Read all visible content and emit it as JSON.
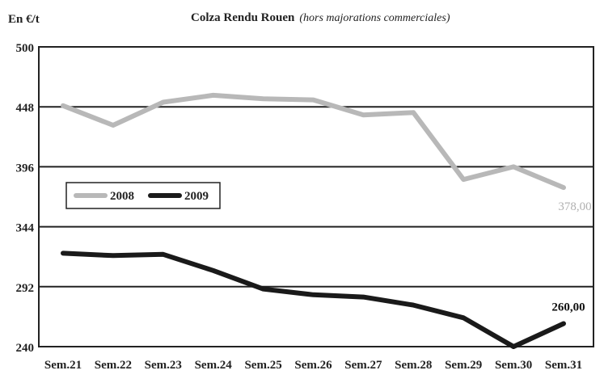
{
  "chart_data": {
    "type": "line",
    "unit_label": "En €/t",
    "title": "Colza Rendu Rouen",
    "subtitle": "(hors majorations commerciales)",
    "categories": [
      "Sem.21",
      "Sem.22",
      "Sem.23",
      "Sem.24",
      "Sem.25",
      "Sem.26",
      "Sem.27",
      "Sem.28",
      "Sem.29",
      "Sem.30",
      "Sem.31"
    ],
    "ylim": [
      240,
      500
    ],
    "yticks": [
      240,
      292,
      344,
      396,
      448,
      500
    ],
    "grid": "horizontal",
    "legend_position": "left, below 396 gridline",
    "series": [
      {
        "name": "2008",
        "color": "#b8b8b8",
        "values": [
          449,
          432,
          452,
          458,
          455,
          454,
          441,
          443,
          385,
          396,
          378
        ],
        "end_label": "378,00"
      },
      {
        "name": "2009",
        "color": "#1a1a1a",
        "values": [
          321,
          319,
          320,
          306,
          290,
          285,
          283,
          276,
          265,
          240,
          260
        ],
        "end_label": "260,00"
      }
    ]
  }
}
